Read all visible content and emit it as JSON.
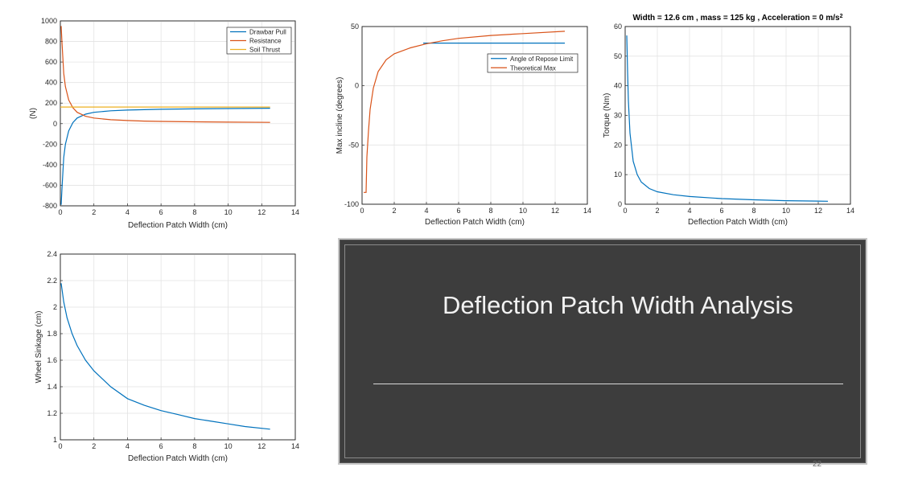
{
  "slide": {
    "title": "Deflection Patch Width Analysis",
    "page_number": "22"
  },
  "chart_data": [
    {
      "id": "forces",
      "type": "line",
      "title": "",
      "xlabel": "Deflection Patch Width (cm)",
      "ylabel": "(N)",
      "xlim": [
        0,
        14
      ],
      "ylim": [
        -800,
        1000
      ],
      "xticks": [
        0,
        2,
        4,
        6,
        8,
        10,
        12,
        14
      ],
      "yticks": [
        -800,
        -600,
        -400,
        -200,
        0,
        200,
        400,
        600,
        800,
        1000
      ],
      "grid": true,
      "legend": "top-right",
      "series": [
        {
          "name": "Drawbar Pull",
          "color": "#0072bd",
          "x": [
            0.05,
            0.1,
            0.2,
            0.3,
            0.5,
            0.75,
            1,
            1.5,
            2,
            3,
            4,
            5,
            6,
            8,
            10,
            12.5
          ],
          "y": [
            -790,
            -620,
            -330,
            -200,
            -70,
            10,
            55,
            92,
            110,
            125,
            132,
            136,
            140,
            144,
            147,
            150
          ]
        },
        {
          "name": "Resistance",
          "color": "#d95319",
          "x": [
            0.05,
            0.1,
            0.2,
            0.3,
            0.5,
            0.75,
            1,
            1.5,
            2,
            3,
            4,
            5,
            6,
            8,
            10,
            12.5
          ],
          "y": [
            950,
            780,
            490,
            360,
            230,
            155,
            110,
            72,
            55,
            38,
            30,
            25,
            22,
            18,
            15,
            12
          ]
        },
        {
          "name": "Soil Thrust",
          "color": "#edb120",
          "x": [
            0,
            12.5
          ],
          "y": [
            162,
            162
          ]
        }
      ]
    },
    {
      "id": "incline",
      "type": "line",
      "title": "",
      "xlabel": "Deflection Patch Width (cm)",
      "ylabel": "Max incline (degrees)",
      "xlim": [
        0,
        14
      ],
      "ylim": [
        -100,
        50
      ],
      "xticks": [
        0,
        2,
        4,
        6,
        8,
        10,
        12,
        14
      ],
      "yticks": [
        -100,
        -50,
        0,
        50
      ],
      "grid": true,
      "legend": "top-right",
      "series": [
        {
          "name": "Angle of Repose Limit",
          "color": "#0072bd",
          "x": [
            3.8,
            12.6
          ],
          "y": [
            36,
            36
          ]
        },
        {
          "name": "Theoretical Max",
          "color": "#d95319",
          "x": [
            0.1,
            0.25,
            0.3,
            0.4,
            0.5,
            0.7,
            1,
            1.5,
            2,
            3,
            4,
            5,
            6,
            8,
            10,
            12.6
          ],
          "y": [
            -90,
            -90,
            -60,
            -38,
            -20,
            -2,
            12,
            22,
            27,
            32,
            35.5,
            38,
            40,
            42.5,
            44,
            46
          ]
        }
      ]
    },
    {
      "id": "torque",
      "type": "line",
      "title": "Width =  12.6 cm , mass =  125 kg , Acceleration =  0 m/s",
      "title_superscript": "2",
      "xlabel": "Deflection Patch Width (cm)",
      "ylabel": "Torque (Nm)",
      "xlim": [
        0,
        14
      ],
      "ylim": [
        0,
        60
      ],
      "xticks": [
        0,
        2,
        4,
        6,
        8,
        10,
        12,
        14
      ],
      "yticks": [
        0,
        10,
        20,
        30,
        40,
        50,
        60
      ],
      "grid": true,
      "legend": "none",
      "series": [
        {
          "name": "",
          "color": "#0072bd",
          "x": [
            0.1,
            0.15,
            0.2,
            0.3,
            0.5,
            0.75,
            1,
            1.5,
            2,
            3,
            4,
            6,
            8,
            10,
            12.6
          ],
          "y": [
            57,
            45,
            35,
            24,
            14.5,
            10,
            7.5,
            5.3,
            4.2,
            3.2,
            2.6,
            1.9,
            1.5,
            1.2,
            1.0
          ]
        }
      ]
    },
    {
      "id": "sinkage",
      "type": "line",
      "title": "",
      "xlabel": "Deflection Patch Width (cm)",
      "ylabel": "Wheel Sinkage (cm)",
      "xlim": [
        0,
        14
      ],
      "ylim": [
        1,
        2.4
      ],
      "xticks": [
        0,
        2,
        4,
        6,
        8,
        10,
        12,
        14
      ],
      "yticks": [
        1,
        1.2,
        1.4,
        1.6,
        1.8,
        2,
        2.2,
        2.4
      ],
      "grid": true,
      "legend": "none",
      "series": [
        {
          "name": "",
          "color": "#0072bd",
          "x": [
            0.05,
            0.2,
            0.4,
            0.7,
            1,
            1.5,
            2,
            3,
            4,
            5,
            6,
            7,
            8,
            9,
            10,
            11,
            12.5
          ],
          "y": [
            2.18,
            2.04,
            1.92,
            1.8,
            1.71,
            1.6,
            1.52,
            1.4,
            1.31,
            1.26,
            1.22,
            1.19,
            1.16,
            1.14,
            1.12,
            1.1,
            1.08
          ]
        }
      ]
    }
  ]
}
